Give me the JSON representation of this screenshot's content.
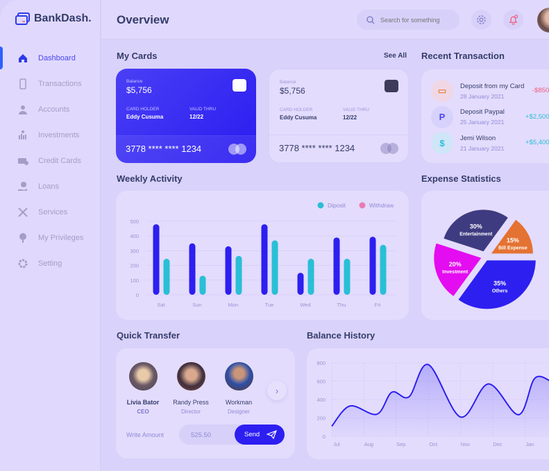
{
  "app": {
    "name": "BankDash."
  },
  "sidebar": {
    "items": [
      {
        "label": "Dashboard",
        "icon": "home-icon",
        "active": true
      },
      {
        "label": "Transactions",
        "icon": "transfer-icon"
      },
      {
        "label": "Accounts",
        "icon": "user-icon"
      },
      {
        "label": "Investments",
        "icon": "investment-icon"
      },
      {
        "label": "Credit Cards",
        "icon": "credit-card-icon"
      },
      {
        "label": "Loans",
        "icon": "loan-icon"
      },
      {
        "label": "Services",
        "icon": "tools-icon"
      },
      {
        "label": "My Privileges",
        "icon": "privilege-icon"
      },
      {
        "label": "Setting",
        "icon": "gear-icon"
      }
    ]
  },
  "header": {
    "title": "Overview",
    "search_placeholder": "Search for something"
  },
  "my_cards": {
    "title": "My Cards",
    "see_all": "See All",
    "cards": [
      {
        "balance_label": "Balance",
        "balance": "$5,756",
        "holder_label": "CARD HOLDER",
        "holder": "Eddy Cusuma",
        "valid_label": "VALID THRU",
        "valid": "12/22",
        "number": "3778 **** **** 1234"
      },
      {
        "balance_label": "Balance",
        "balance": "$5,756",
        "holder_label": "CARD HOLDER",
        "holder": "Eddy Cusuma",
        "valid_label": "VALID THRU",
        "valid": "12/22",
        "number": "3778 **** **** 1234"
      }
    ]
  },
  "recent": {
    "title": "Recent Transaction",
    "items": [
      {
        "name": "Deposit from my Card",
        "date": "28 January 2021",
        "amount": "-$850",
        "color": "#ff4b4a"
      },
      {
        "name": "Deposit Paypal",
        "date": "25 January 2021",
        "amount": "+$2,500",
        "color": "#41d4a8"
      },
      {
        "name": "Jemi Wilson",
        "date": "21 January 2021",
        "amount": "+$5,400",
        "color": "#41d4a8"
      }
    ]
  },
  "weekly": {
    "title": "Weekly Activity"
  },
  "expense": {
    "title": "Expense Statistics"
  },
  "quick": {
    "title": "Quick Transfer",
    "people": [
      {
        "name": "Livia Bator",
        "role": "CEO"
      },
      {
        "name": "Randy Press",
        "role": "Director"
      },
      {
        "name": "Workman",
        "role": "Designer"
      }
    ],
    "amount_label": "Write Amount",
    "amount": "525.50",
    "send": "Send"
  },
  "balance": {
    "title": "Balance History"
  },
  "colors": {
    "accent": "#2d1ff0",
    "deposit": "#29bfd6",
    "withdraw": "#2d1ff0",
    "legend_withdraw": "#e77db4"
  },
  "chart_data": [
    {
      "type": "bar",
      "title": "Weekly Activity",
      "categories": [
        "Sat",
        "Sun",
        "Mon",
        "Tue",
        "Wed",
        "Thu",
        "Fri"
      ],
      "yticks": [
        "0",
        "100",
        "200",
        "300",
        "400",
        "500"
      ],
      "ylim": [
        0,
        500
      ],
      "legend_placement": "top-right",
      "grid": true,
      "legend": [
        "Diposit",
        "Withdraw"
      ],
      "series": [
        {
          "values": [
            480,
            350,
            330,
            480,
            150,
            390,
            395
          ],
          "color": "#2d1ff0"
        },
        {
          "name": "Diposit",
          "values": [
            245,
            130,
            265,
            370,
            245,
            245,
            340
          ],
          "color": "#29bfd6"
        }
      ]
    },
    {
      "type": "pie",
      "title": "Expense Statistics",
      "slices": [
        {
          "label": "Entertainment",
          "value": 30,
          "color": "#3f3b80"
        },
        {
          "label": "Bill Expense",
          "value": 15,
          "color": "#e47232"
        },
        {
          "label": "Others",
          "value": 35,
          "color": "#2d1ff0"
        },
        {
          "label": "Investment",
          "value": 20,
          "color": "#e40cf0"
        }
      ]
    },
    {
      "type": "area",
      "title": "Balance History",
      "xticks": [
        "Jul",
        "Aug",
        "Sep",
        "Oct",
        "Nov",
        "Dec",
        "Jan"
      ],
      "yticks": [
        "0",
        "200",
        "400",
        "600",
        "800"
      ],
      "ylim": [
        0,
        800
      ],
      "grid": true,
      "points": [
        [
          "Jul 1",
          110
        ],
        [
          "Jul 18",
          330
        ],
        [
          "Aug 13",
          240
        ],
        [
          "Aug 27",
          480
        ],
        [
          "Sep 13",
          430
        ],
        [
          "Oct 1",
          780
        ],
        [
          "Nov 1",
          210
        ],
        [
          "Nov 27",
          570
        ],
        [
          "Dec 25",
          235
        ],
        [
          "Jan 10",
          630
        ],
        [
          "Jan 25",
          600
        ]
      ]
    }
  ]
}
